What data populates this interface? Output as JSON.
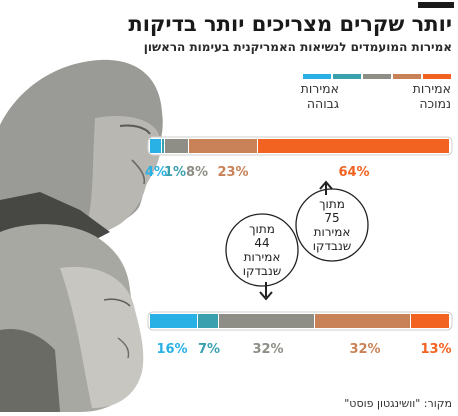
{
  "header": {
    "title": "יותר שקרים מצריכים יותר בדיקות",
    "subtitle": "אמירות המועמדים לנשיאות האמריקנית בעימות הראשון"
  },
  "legend": {
    "high_label_line1": "אמירות",
    "high_label_line2": "גבוהה",
    "low_label_line1": "אמירות",
    "low_label_line2": "נמוכה",
    "colors": [
      "#f26322",
      "#c98258",
      "#8e8e86",
      "#3aa0ae",
      "#29b1e5"
    ]
  },
  "annotations": {
    "trump_checked": [
      "מתוך",
      "75",
      "אמירות",
      "שנבדקו"
    ],
    "clinton_checked": [
      "מתוך",
      "44",
      "אמירות",
      "שנבדקו"
    ]
  },
  "source": "מקור: \"וושינגטון פוסט\"",
  "chart_data": {
    "type": "bar",
    "subtype": "stacked-horizontal-100",
    "categories": [
      "Trump",
      "Clinton"
    ],
    "series": [
      {
        "color": "#29b1e5",
        "values": [
          4,
          16
        ]
      },
      {
        "color": "#3aa0ae",
        "values": [
          1,
          7
        ]
      },
      {
        "color": "#8e8e86",
        "values": [
          8,
          32
        ]
      },
      {
        "color": "#c98258",
        "values": [
          23,
          32
        ]
      },
      {
        "color": "#f26322",
        "values": [
          64,
          13
        ]
      }
    ],
    "data_labels": [
      [
        "4%",
        "1%",
        "8%",
        "23%",
        "64%"
      ],
      [
        "16%",
        "7%",
        "32%",
        "32%",
        "13%"
      ]
    ],
    "total_statements_checked": [
      75,
      44
    ],
    "xlim": [
      0,
      100
    ]
  }
}
